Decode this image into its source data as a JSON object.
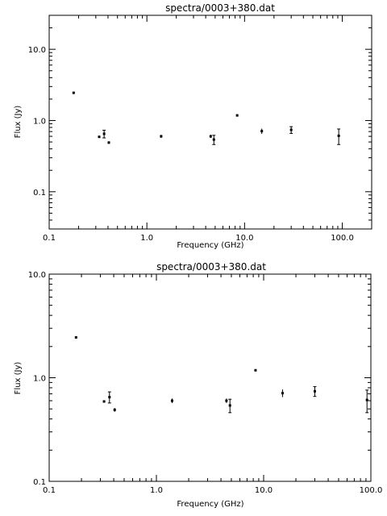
{
  "chart_data": [
    {
      "type": "scatter",
      "title": "spectra/0003+380.dat",
      "xlabel": "Frequency (GHz)",
      "ylabel": "Flux (Jy)",
      "xscale": "log",
      "yscale": "log",
      "xlim": [
        0.1,
        200
      ],
      "ylim": [
        0.03,
        30
      ],
      "xticks": [
        "0.1",
        "1.0",
        "10.0",
        "100.0"
      ],
      "yticks": [
        "0.1",
        "1.0",
        "10.0"
      ],
      "legend": "none",
      "grid": false,
      "points": [
        {
          "x": 0.178,
          "y": 2.45,
          "err": 0.02
        },
        {
          "x": 0.325,
          "y": 0.59,
          "err": 0.01
        },
        {
          "x": 0.365,
          "y": 0.65,
          "err": 0.08
        },
        {
          "x": 0.408,
          "y": 0.49,
          "err": 0.02
        },
        {
          "x": 1.4,
          "y": 0.6,
          "err": 0.03
        },
        {
          "x": 4.5,
          "y": 0.6,
          "err": 0.03
        },
        {
          "x": 4.85,
          "y": 0.54,
          "err": 0.08
        },
        {
          "x": 8.4,
          "y": 1.18,
          "err": 0.02
        },
        {
          "x": 15.0,
          "y": 0.71,
          "err": 0.06
        },
        {
          "x": 30.0,
          "y": 0.74,
          "err": 0.08
        },
        {
          "x": 92.0,
          "y": 0.61,
          "err": 0.15
        }
      ]
    },
    {
      "type": "scatter",
      "title": "spectra/0003+380.dat",
      "xlabel": "Frequency (GHz)",
      "ylabel": "Flux (Jy)",
      "xscale": "log",
      "yscale": "log",
      "xlim": [
        0.1,
        100
      ],
      "ylim": [
        0.1,
        10
      ],
      "xticks": [
        "0.1",
        "1.0",
        "10.0",
        "100.0"
      ],
      "yticks": [
        "0.1",
        "1.0",
        "10.0"
      ],
      "legend": "none",
      "grid": false,
      "points": [
        {
          "x": 0.178,
          "y": 2.45,
          "err": 0.02
        },
        {
          "x": 0.325,
          "y": 0.59,
          "err": 0.01
        },
        {
          "x": 0.365,
          "y": 0.65,
          "err": 0.08
        },
        {
          "x": 0.408,
          "y": 0.49,
          "err": 0.02
        },
        {
          "x": 1.4,
          "y": 0.6,
          "err": 0.03
        },
        {
          "x": 4.5,
          "y": 0.6,
          "err": 0.03
        },
        {
          "x": 4.85,
          "y": 0.54,
          "err": 0.08
        },
        {
          "x": 8.4,
          "y": 1.18,
          "err": 0.02
        },
        {
          "x": 15.0,
          "y": 0.71,
          "err": 0.06
        },
        {
          "x": 30.0,
          "y": 0.74,
          "err": 0.08
        },
        {
          "x": 92.0,
          "y": 0.61,
          "err": 0.15
        }
      ]
    }
  ]
}
